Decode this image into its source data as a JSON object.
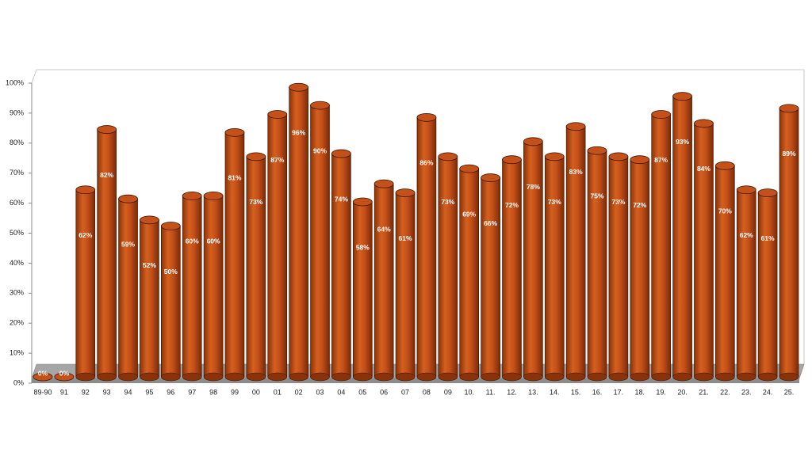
{
  "chart_data": {
    "type": "bar3d",
    "categories": [
      "89-90",
      "91",
      "92",
      "93",
      "94",
      "95",
      "96",
      "97",
      "98",
      "99",
      "00",
      "01",
      "02",
      "03",
      "04",
      "05",
      "06",
      "07",
      "08",
      "09",
      "10.",
      "11.",
      "12.",
      "13.",
      "14.",
      "15.",
      "16.",
      "17.",
      "18.",
      "19.",
      "20.",
      "21.",
      "22.",
      "23.",
      "24.",
      "25."
    ],
    "values": [
      0,
      0,
      62,
      82,
      59,
      52,
      50,
      60,
      60,
      81,
      73,
      87,
      96,
      90,
      74,
      58,
      64,
      61,
      86,
      73,
      69,
      66,
      72,
      78,
      73,
      83,
      75,
      73,
      72,
      87,
      93,
      84,
      70,
      62,
      61,
      89
    ],
    "value_labels": [
      "0%",
      "0%",
      "62%",
      "82%",
      "59%",
      "52%",
      "50%",
      "60%",
      "60%",
      "81%",
      "73%",
      "87%",
      "96%",
      "90%",
      "74%",
      "58%",
      "64%",
      "61%",
      "86%",
      "73%",
      "69%",
      "66%",
      "72%",
      "78%",
      "73%",
      "83%",
      "75%",
      "73%",
      "72%",
      "87%",
      "93%",
      "84%",
      "70%",
      "62%",
      "61%",
      "89%"
    ],
    "color": "#c4501a",
    "ylim": [
      0,
      100
    ],
    "yticks": [
      {
        "value": 0,
        "label": "0%"
      },
      {
        "value": 10,
        "label": "10%"
      },
      {
        "value": 20,
        "label": "20%"
      },
      {
        "value": 30,
        "label": "30%"
      },
      {
        "value": 40,
        "label": "40%"
      },
      {
        "value": 50,
        "label": "50%"
      },
      {
        "value": 60,
        "label": "60%"
      },
      {
        "value": 70,
        "label": "70%"
      },
      {
        "value": 80,
        "label": "80%"
      },
      {
        "value": 90,
        "label": "90%"
      },
      {
        "value": 100,
        "label": "100%"
      }
    ]
  }
}
